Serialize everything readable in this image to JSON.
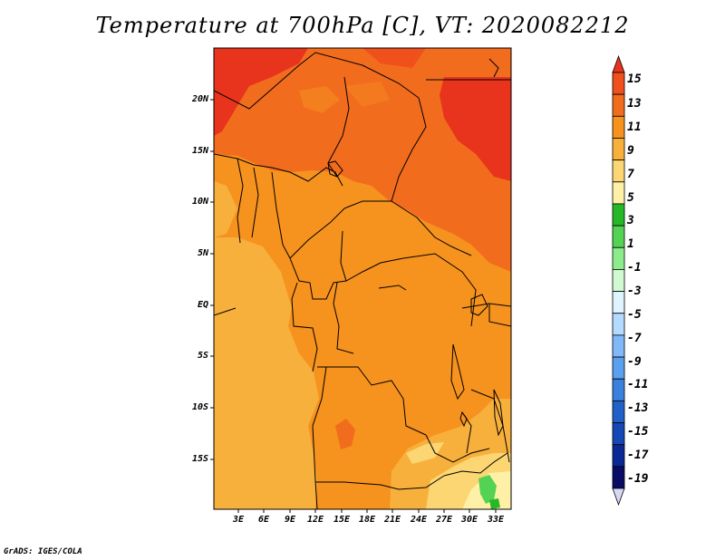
{
  "title": "Temperature at 700hPa [C], VT: 2020082212",
  "credit": "GrADS: IGES/COLA",
  "lat_labels": [
    "20N",
    "15N",
    "10N",
    "5N",
    "EQ",
    "5S",
    "10S",
    "15S"
  ],
  "lon_labels": [
    "3E",
    "6E",
    "9E",
    "12E",
    "15E",
    "18E",
    "21E",
    "24E",
    "27E",
    "30E",
    "33E"
  ],
  "colorbar": {
    "labels": [
      "15",
      "13",
      "11",
      "9",
      "7",
      "5",
      "3",
      "1",
      "-1",
      "-3",
      "-5",
      "-7",
      "-9",
      "-11",
      "-13",
      "-15",
      "-17",
      "-19"
    ],
    "colors": [
      "#e8341c",
      "#f0501c",
      "#f26c1e",
      "#f6921e",
      "#f8b03c",
      "#fcd673",
      "#fff0a8",
      "#26b826",
      "#54d254",
      "#8cec8c",
      "#d2fad2",
      "#e0f4ff",
      "#b4daff",
      "#80b8f8",
      "#5aa0ee",
      "#3c80de",
      "#2060c8",
      "#1448b4",
      "#0a2896",
      "#080c64",
      "#d6d8f4"
    ]
  }
}
